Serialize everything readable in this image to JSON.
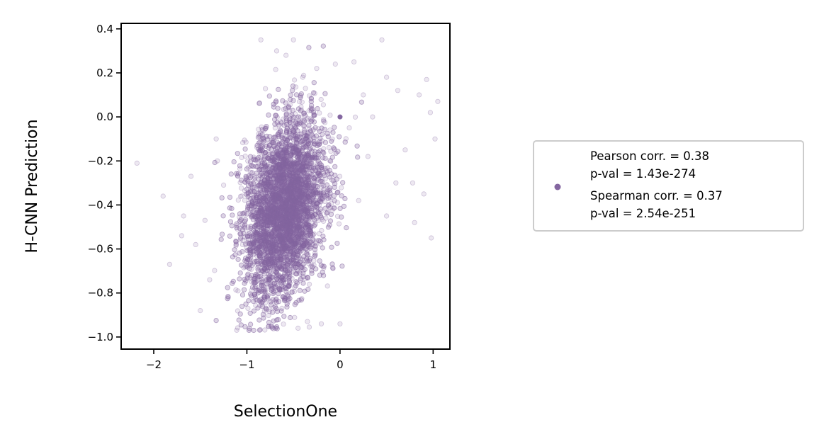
{
  "chart_data": {
    "type": "scatter",
    "xlabel": "SelectionOne",
    "ylabel": "H-CNN Prediction",
    "xlim": [
      -2.35,
      1.18
    ],
    "ylim": [
      -1.055,
      0.425
    ],
    "xticks": [
      -2,
      -1,
      0,
      1
    ],
    "yticks": [
      0.4,
      0.2,
      0.0,
      -0.2,
      -0.4,
      -0.6,
      -0.8,
      -1.0
    ],
    "xtick_labels": [
      "−2",
      "−1",
      "0",
      "1"
    ],
    "ytick_labels": [
      "0.4",
      "0.2",
      "0.0",
      "−0.2",
      "−0.4",
      "−0.6",
      "−0.8",
      "−1.0"
    ],
    "grid": false,
    "legend_position": "right, outside axes",
    "point_color": "#8466a0",
    "point_alpha": 0.15,
    "series": [
      {
        "legend_lines": [
          "Pearson corr. = 0.38",
          "p-val = 1.43e-274",
          "Spearman corr. = 0.37",
          "p-val = 2.54e-251"
        ],
        "summary": {
          "approx_point_count": 6000,
          "x_mean": -0.6,
          "x_std": 0.22,
          "y_mean": -0.42,
          "y_std": 0.2,
          "y_min": -0.97,
          "y_max": 0.35
        },
        "cluster_point": [
          0,
          0
        ],
        "points": [
          [
            -2.18,
            -0.21
          ],
          [
            -1.9,
            -0.36
          ],
          [
            -1.83,
            -0.67
          ],
          [
            -1.7,
            -0.54
          ],
          [
            -1.68,
            -0.45
          ],
          [
            -1.6,
            -0.27
          ],
          [
            -1.55,
            -0.58
          ],
          [
            -1.5,
            -0.88
          ],
          [
            -1.45,
            -0.47
          ],
          [
            -1.4,
            -0.74
          ],
          [
            -1.33,
            -0.1
          ],
          [
            -1.25,
            -0.31
          ],
          [
            -1.2,
            -0.82
          ],
          [
            -0.85,
            0.35
          ],
          [
            -0.68,
            0.3
          ],
          [
            -0.58,
            0.28
          ],
          [
            -0.5,
            0.35
          ],
          [
            -0.45,
            -0.96
          ],
          [
            -0.35,
            -0.93
          ],
          [
            -0.2,
            -0.94
          ],
          [
            0.0,
            -0.94
          ],
          [
            0.15,
            0.25
          ],
          [
            0.25,
            0.1
          ],
          [
            0.35,
            0.0
          ],
          [
            0.45,
            0.35
          ],
          [
            0.5,
            0.18
          ],
          [
            0.62,
            0.12
          ],
          [
            0.7,
            -0.15
          ],
          [
            0.78,
            -0.3
          ],
          [
            0.85,
            0.1
          ],
          [
            0.9,
            -0.35
          ],
          [
            0.93,
            0.17
          ],
          [
            0.97,
            0.02
          ],
          [
            1.02,
            -0.1
          ],
          [
            1.05,
            0.07
          ],
          [
            0.98,
            -0.55
          ],
          [
            0.8,
            -0.48
          ],
          [
            0.6,
            -0.3
          ],
          [
            0.5,
            -0.45
          ],
          [
            0.3,
            -0.18
          ],
          [
            0.2,
            -0.38
          ],
          [
            0.1,
            -0.05
          ],
          [
            -0.05,
            0.24
          ],
          [
            -0.25,
            0.22
          ],
          [
            -0.4,
            0.18
          ]
        ]
      }
    ]
  }
}
